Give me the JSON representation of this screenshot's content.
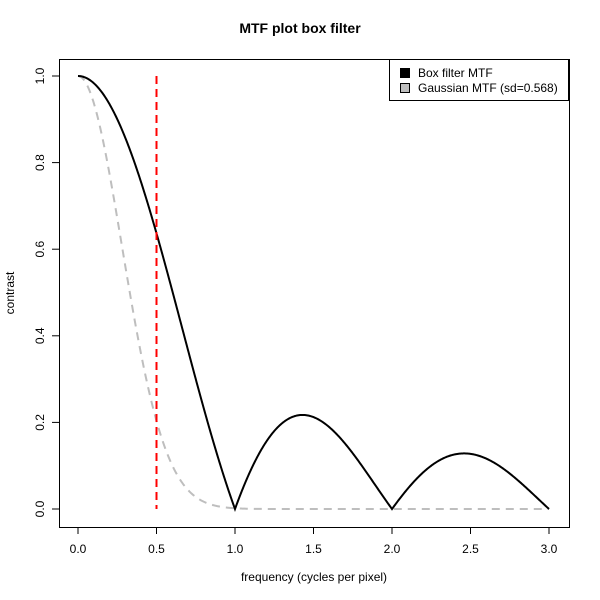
{
  "chart_data": {
    "type": "line",
    "title": "MTF plot box filter",
    "xlabel": "frequency (cycles per pixel)",
    "ylabel": "contrast",
    "xlim": [
      0,
      3
    ],
    "ylim": [
      0,
      1
    ],
    "xticks": [
      "0.0",
      "0.5",
      "1.0",
      "1.5",
      "2.0",
      "2.5",
      "3.0"
    ],
    "yticks": [
      "0.0",
      "0.2",
      "0.4",
      "0.6",
      "0.8",
      "1.0"
    ],
    "grid": false,
    "legend_position": "top-right",
    "series": [
      {
        "name": "Box filter MTF",
        "color": "#000000",
        "style": "solid",
        "function": "|sin(pi f)/(pi f)|",
        "x": [
          0,
          0.25,
          0.5,
          0.75,
          1.0,
          1.25,
          1.43,
          1.75,
          2.0,
          2.25,
          2.46,
          2.75,
          3.0
        ],
        "values": [
          1.0,
          0.9,
          0.637,
          0.3,
          0.0,
          0.18,
          0.217,
          0.129,
          0.0,
          0.1,
          0.128,
          0.082,
          0.0
        ]
      },
      {
        "name": "Gaussian MTF (sd=0.568)",
        "color": "#bebebe",
        "style": "dashed",
        "function": "exp(-2 pi^2 sd^2 f^2), sd=0.568",
        "x": [
          0,
          0.25,
          0.5,
          0.75,
          1.0,
          1.5,
          2.0,
          3.0
        ],
        "values": [
          1.0,
          0.672,
          0.204,
          0.028,
          0.002,
          0.0,
          0.0,
          0.0
        ]
      }
    ],
    "annotations": [
      {
        "type": "vline",
        "x": 0.5,
        "color": "#ff0000",
        "style": "dashed"
      }
    ]
  },
  "legend": {
    "items": [
      {
        "label": "Box filter MTF",
        "color": "#000000"
      },
      {
        "label": "Gaussian MTF (sd=0.568)",
        "color": "#bebebe"
      }
    ]
  }
}
